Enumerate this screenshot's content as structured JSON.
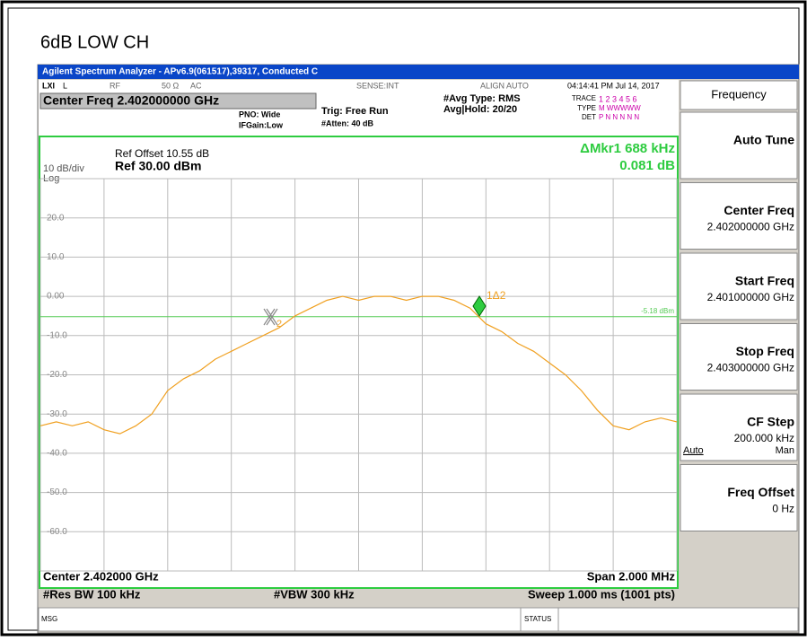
{
  "title": "6dB LOW CH",
  "window_title": "Agilent Spectrum Analyzer - APv6.9(061517),39317, Conducted C",
  "status_row": {
    "lxi": "LXI",
    "l": "L",
    "rf": "RF",
    "ohm": "50 Ω",
    "ac": "AC",
    "sense": "SENSE:INT",
    "align": "ALIGN AUTO",
    "time": "04:14:41 PM Jul 14, 2017"
  },
  "header": {
    "center_freq": "Center Freq 2.402000000 GHz",
    "pno": "PNO: Wide",
    "ifgain": "IFGain:Low",
    "trig": "Trig: Free Run",
    "atten": "#Atten: 40 dB",
    "avg_type": "#Avg Type: RMS",
    "avg_hold": "Avg|Hold: 20/20",
    "trace": "TRACE",
    "trace_nums": "1 2 3 4 5 6",
    "type": "TYPE",
    "type_val": "M WWWWW",
    "det": "DET",
    "det_val": "P N N N N N"
  },
  "graph": {
    "ref_offset": "Ref Offset 10.55 dB",
    "ref": "Ref 30.00 dBm",
    "scale": "10 dB/div",
    "log": "Log",
    "marker_readout": "ΔMkr1 688 kHz",
    "marker_value": "0.081 dB",
    "marker1": "1Δ2",
    "marker2": "2"
  },
  "footer": {
    "center": "Center 2.402000 GHz",
    "span": "Span 2.000 MHz",
    "rbw": "#Res BW 100 kHz",
    "vbw": "#VBW 300 kHz",
    "sweep": "Sweep  1.000 ms (1001 pts)"
  },
  "statusbar": {
    "msg": "MSG",
    "status": "STATUS"
  },
  "menu": {
    "title": "Frequency",
    "items": [
      {
        "label": "Auto Tune"
      },
      {
        "label": "Center Freq",
        "value": "2.402000000 GHz"
      },
      {
        "label": "Start Freq",
        "value": "2.401000000 GHz"
      },
      {
        "label": "Stop Freq",
        "value": "2.403000000 GHz"
      },
      {
        "label": "CF Step",
        "value": "200.000 kHz",
        "auto": "Auto",
        "man": "Man"
      },
      {
        "label": "Freq Offset",
        "value": "0 Hz"
      }
    ]
  },
  "chart_data": {
    "type": "line",
    "color": "#f0a020",
    "grid": true,
    "ylim": [
      -70,
      30
    ],
    "yticks": [
      {
        "value": 20,
        "label": "20.0"
      },
      {
        "value": 10,
        "label": "10.0"
      },
      {
        "value": 0,
        "label": "0.00"
      },
      {
        "value": -10,
        "label": "-10.0"
      },
      {
        "value": -20,
        "label": "-20.0"
      },
      {
        "value": -30,
        "label": "-30.0"
      },
      {
        "value": -40,
        "label": "-40.0"
      },
      {
        "value": -50,
        "label": "-50.0"
      },
      {
        "value": -60,
        "label": "-60.0"
      }
    ],
    "display_line": {
      "value": -5.18,
      "label": "-5.18 dBm"
    },
    "values": [
      -33,
      -32,
      -33,
      -32,
      -34,
      -35,
      -33,
      -30,
      -24,
      -21,
      -19,
      -16,
      -14,
      -12,
      -10,
      -8,
      -5,
      -3,
      -1,
      0,
      -1,
      0,
      0,
      -1,
      0,
      0,
      -1,
      -3,
      -7,
      -9,
      -12,
      -14,
      -17,
      -20,
      -24,
      -29,
      -33,
      -34,
      -32,
      -31,
      -32
    ]
  }
}
